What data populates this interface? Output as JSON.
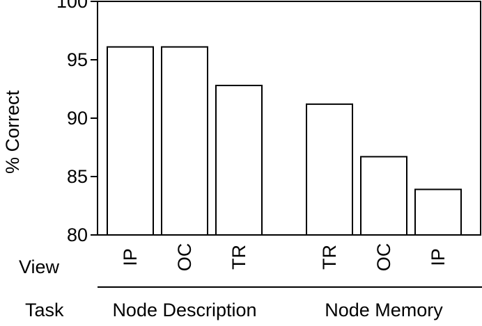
{
  "chart_data": {
    "type": "bar",
    "ylabel": "% Correct",
    "ylim": [
      80,
      100
    ],
    "yticks": [
      80,
      85,
      90,
      95,
      100
    ],
    "grid": false,
    "row_labels": {
      "view": "View",
      "task": "Task"
    },
    "groups": [
      {
        "task": "Node Description",
        "bars": [
          {
            "view": "IP",
            "value": 96.1
          },
          {
            "view": "OC",
            "value": 96.1
          },
          {
            "view": "TR",
            "value": 92.8
          }
        ]
      },
      {
        "task": "Node Memory",
        "bars": [
          {
            "view": "TR",
            "value": 91.2
          },
          {
            "view": "OC",
            "value": 86.7
          },
          {
            "view": "IP",
            "value": 83.9
          }
        ]
      }
    ],
    "colors": {
      "bar_fill": "#ffffff",
      "bar_stroke": "#000000",
      "axis": "#000000"
    }
  }
}
